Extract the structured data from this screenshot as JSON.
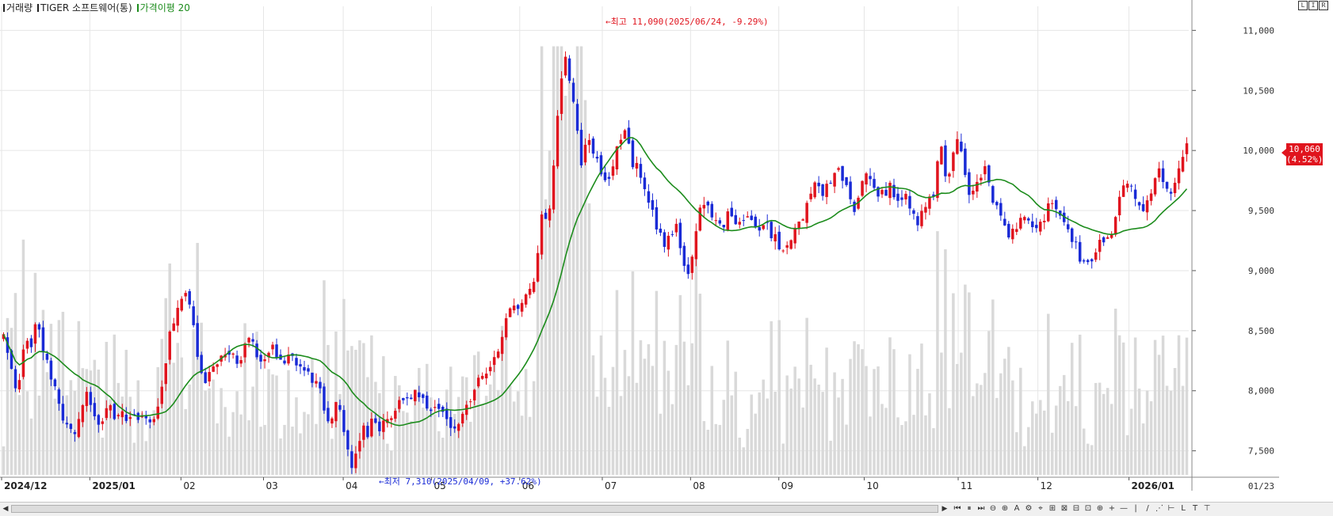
{
  "legend": {
    "volume_label": "거래량",
    "symbol_label": "TIGER 소프트웨어(통)",
    "ma_label": "가격이평 20"
  },
  "corner_icons": [
    "L",
    "I",
    "R"
  ],
  "annotations": {
    "high": "←최고 11,090(2025/06/24, -9.29%)",
    "low": "←최저 7,310(2025/04/09, +37.62%)"
  },
  "last_price": {
    "value": "10,060",
    "change": "(4.52%)"
  },
  "colors": {
    "up": "#e0141e",
    "down": "#1a2bd6",
    "ma": "#1c8c1c",
    "volume": "#d9d9d9",
    "grid": "#e6e6e6"
  },
  "toolbar": {
    "scroll_left": "◀",
    "scroll_right": "▶",
    "icons": [
      "⏮",
      "⏸",
      "⏭",
      "⊖",
      "⊕",
      "A",
      "⚙",
      "⌖",
      "⊞",
      "⊠",
      "⊟",
      "⊡",
      "⊕",
      "+",
      "—",
      "|",
      "/",
      "⋰",
      "⊢",
      "L",
      "T",
      "⊤"
    ]
  },
  "chart_data": {
    "type": "candlestick",
    "title": "TIGER 소프트웨어(통)",
    "ylim": [
      7300,
      11200
    ],
    "y_ticks": [
      "11,000",
      "10,500",
      "10,000",
      "9,500",
      "9,000",
      "8,500",
      "8,000",
      "7,500"
    ],
    "y_tick_values": [
      11000,
      10500,
      10000,
      9500,
      9000,
      8500,
      8000,
      7500
    ],
    "x_range": [
      "2024-12-02",
      "2026-01-23"
    ],
    "x_ticks": [
      {
        "label": "2024/12",
        "date": "2024-12-02",
        "bold": true
      },
      {
        "label": "2025/01",
        "date": "2025-01-02",
        "bold": true
      },
      {
        "label": "02",
        "date": "2025-02-03",
        "bold": false
      },
      {
        "label": "03",
        "date": "2025-03-04",
        "bold": false
      },
      {
        "label": "04",
        "date": "2025-04-01",
        "bold": false
      },
      {
        "label": "05",
        "date": "2025-05-02",
        "bold": false
      },
      {
        "label": "06",
        "date": "2025-06-02",
        "bold": false
      },
      {
        "label": "07",
        "date": "2025-07-01",
        "bold": false
      },
      {
        "label": "08",
        "date": "2025-08-01",
        "bold": false
      },
      {
        "label": "09",
        "date": "2025-09-01",
        "bold": false
      },
      {
        "label": "10",
        "date": "2025-10-01",
        "bold": false
      },
      {
        "label": "11",
        "date": "2025-11-03",
        "bold": false
      },
      {
        "label": "12",
        "date": "2025-12-01",
        "bold": false
      },
      {
        "label": "2026/01",
        "date": "2026-01-02",
        "bold": true
      }
    ],
    "last_date_label": "01/23",
    "close_path": [
      8450,
      8250,
      8000,
      8150,
      8450,
      8400,
      8650,
      8300,
      8200,
      8050,
      7850,
      7750,
      7700,
      7600,
      7900,
      8050,
      7800,
      7750,
      7800,
      7850,
      7750,
      7800,
      7750,
      7800,
      7750,
      7800,
      7750,
      7800,
      7900,
      8300,
      8550,
      8700,
      8800,
      8750,
      8500,
      8200,
      8100,
      8150,
      8250,
      8300,
      8350,
      8280,
      8200,
      8350,
      8450,
      8300,
      8250,
      8300,
      8350,
      8250,
      8200,
      8300,
      8250,
      8200,
      8150,
      8100,
      8050,
      7900,
      7700,
      7900,
      7800,
      7600,
      7310,
      7500,
      7700,
      7650,
      7800,
      7700,
      7750,
      7800,
      7850,
      7900,
      7950,
      7950,
      8000,
      7900,
      7800,
      7850,
      7800,
      7750,
      7700,
      7750,
      7850,
      7900,
      8050,
      8100,
      8150,
      8250,
      8300,
      8500,
      8650,
      8750,
      8700,
      8800,
      8850,
      9000,
      9500,
      9400,
      9800,
      10400,
      10850,
      10600,
      10300,
      9900,
      10150,
      10000,
      9900,
      9800,
      9750,
      9950,
      10100,
      10150,
      9900,
      9850,
      9700,
      9600,
      9450,
      9300,
      9200,
      9300,
      9350,
      9100,
      9000,
      9150,
      9450,
      9600,
      9500,
      9400,
      9350,
      9450,
      9500,
      9350,
      9400,
      9450,
      9400,
      9350,
      9400,
      9300,
      9250,
      9150,
      9200,
      9350,
      9400,
      9500,
      9600,
      9750,
      9650,
      9700,
      9800,
      9850,
      9750,
      9600,
      9500,
      9700,
      9800,
      9750,
      9600,
      9650,
      9700,
      9550,
      9600,
      9650,
      9450,
      9400,
      9500,
      9600,
      9650,
      10050,
      9800,
      9850,
      10150,
      9950,
      9650,
      9700,
      9800,
      9850,
      9650,
      9550,
      9450,
      9300,
      9350,
      9400,
      9450,
      9350,
      9300,
      9400,
      9500,
      9550,
      9500,
      9450,
      9300,
      9250,
      9100,
      9000,
      9100,
      9200,
      9250,
      9300,
      9350,
      9600,
      9800,
      9700,
      9600,
      9450,
      9550,
      9750,
      9850,
      9700,
      9600,
      9750,
      9900,
      10060
    ]
  }
}
